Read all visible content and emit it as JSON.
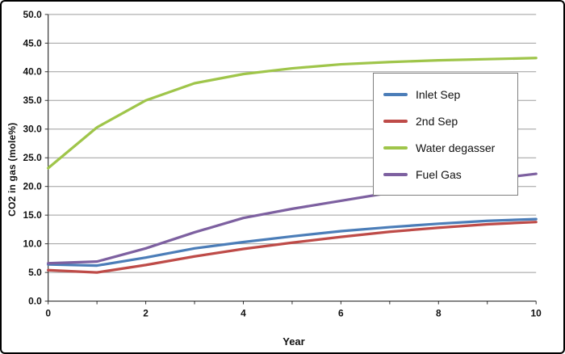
{
  "chart_data": {
    "type": "line",
    "title": "",
    "xlabel": "Year",
    "ylabel": "CO2 in gas (mole%)",
    "xlim": [
      0,
      10
    ],
    "ylim": [
      0,
      50
    ],
    "grid": "horizontal",
    "legend_position": "inside-right",
    "x": [
      0,
      1,
      2,
      3,
      4,
      5,
      6,
      7,
      8,
      9,
      10
    ],
    "xticks": {
      "values": [
        0,
        2,
        4,
        6,
        8,
        10
      ],
      "labels": [
        "0",
        "2",
        "4",
        "6",
        "8",
        "10"
      ]
    },
    "yticks": {
      "values": [
        0,
        5,
        10,
        15,
        20,
        25,
        30,
        35,
        40,
        45,
        50
      ],
      "labels": [
        "0.0",
        "5.0",
        "10.0",
        "15.0",
        "20.0",
        "25.0",
        "30.0",
        "35.0",
        "40.0",
        "45.0",
        "50.0"
      ]
    },
    "series": [
      {
        "name": "Inlet Sep",
        "color": "#4B7DB8",
        "values": [
          6.4,
          6.2,
          7.6,
          9.2,
          10.3,
          11.3,
          12.2,
          12.9,
          13.5,
          14.0,
          14.3
        ]
      },
      {
        "name": "2nd Sep",
        "color": "#BE4B48",
        "values": [
          5.4,
          5.0,
          6.3,
          7.8,
          9.1,
          10.2,
          11.2,
          12.1,
          12.8,
          13.4,
          13.8
        ]
      },
      {
        "name": "Water degasser",
        "color": "#9FC54A",
        "values": [
          23.2,
          30.3,
          35.0,
          38.0,
          39.6,
          40.6,
          41.3,
          41.7,
          42.0,
          42.2,
          42.4
        ]
      },
      {
        "name": "Fuel Gas",
        "color": "#7D60A0",
        "values": [
          6.6,
          6.9,
          9.2,
          12.0,
          14.5,
          16.1,
          17.5,
          18.9,
          20.1,
          21.2,
          22.2
        ]
      }
    ]
  },
  "colors": {
    "grid": "#9e9e9e",
    "axis": "#333333",
    "tick_text": "#111111",
    "frame": "#000000",
    "legend_border": "#7f7f7f",
    "background": "#ffffff"
  }
}
